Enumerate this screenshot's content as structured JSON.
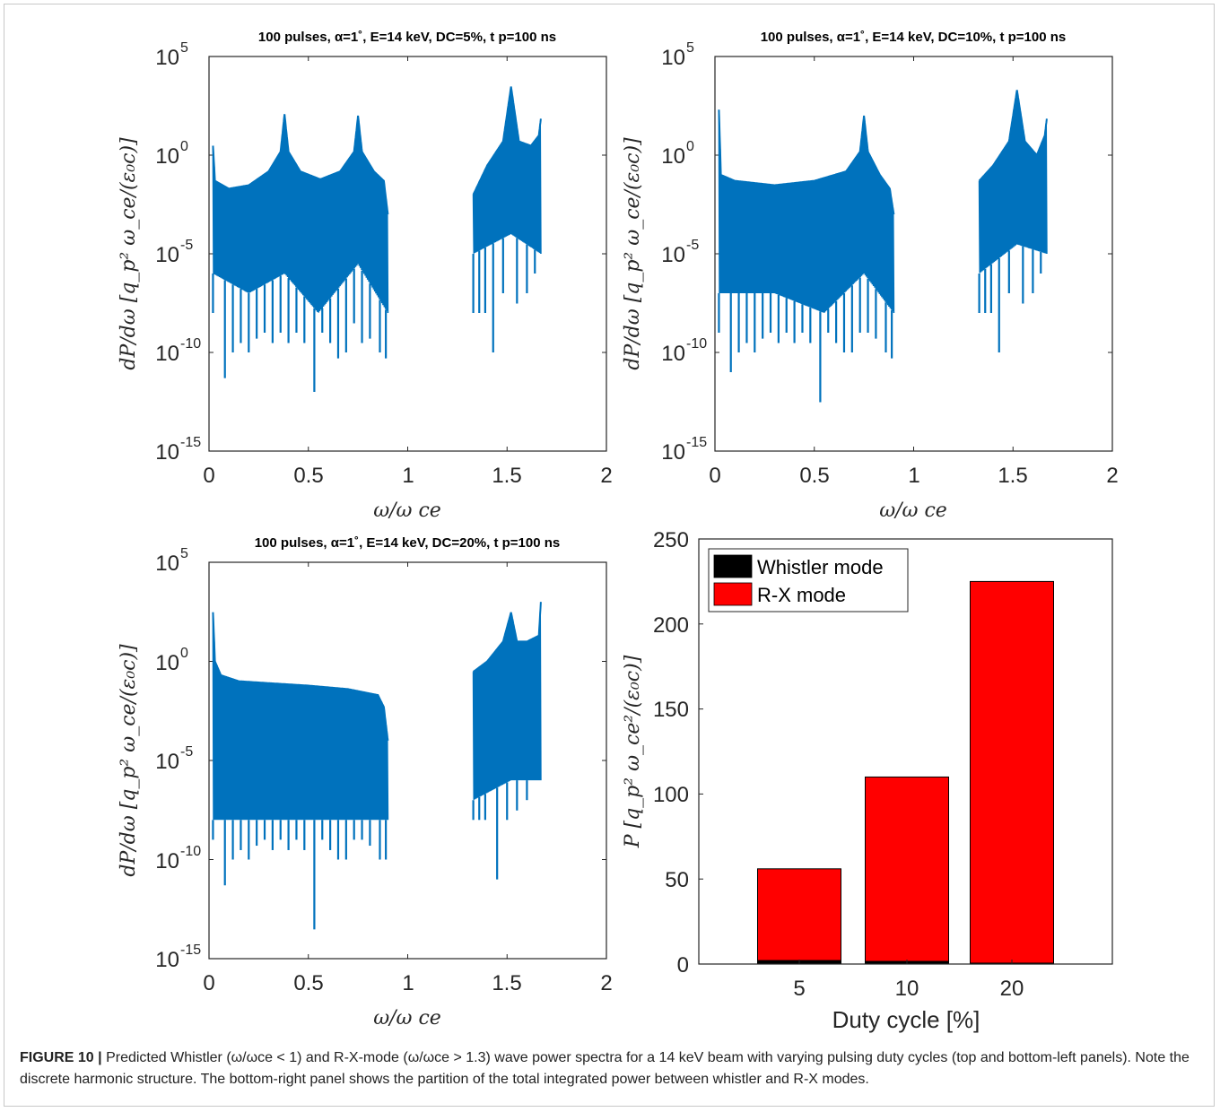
{
  "figure": {
    "caption_label": "FIGURE 10 |",
    "caption_text": "Predicted Whistler (ω/ωce < 1) and R-X-mode (ω/ωce > 1.3) wave power spectra for a 14 keV beam with varying pulsing duty cycles (top and bottom-left panels). Note the discrete harmonic structure. The bottom-right panel shows the partition of the total integrated power between whistler and R-X modes."
  },
  "colors": {
    "spectrum": "#0072BD",
    "whistler": "#000000",
    "rx": "#FF0000",
    "axis": "#262626"
  },
  "chart_data": [
    {
      "type": "line",
      "title": "100 pulses, α=1˚, E=14 keV, DC=5%, t p=100 ns",
      "xlabel": "ω/ω ce",
      "ylabel": "dP/dω [q_p² ω_ce/(ε₀c)]",
      "xlim": [
        0,
        2
      ],
      "ylim": [
        1e-15,
        100000
      ],
      "yscale": "log",
      "xticks": [
        "0",
        "0.5",
        "1",
        "1.5",
        "2"
      ],
      "yticks": [
        "10",
        "10",
        "10",
        "10",
        "10"
      ],
      "ytick_exponents": [
        "-15",
        "-10",
        "-5",
        "0",
        "5"
      ],
      "series": [
        {
          "upper_envelope": [
            [
              0.02,
              3
            ],
            [
              0.03,
              0.05
            ],
            [
              0.1,
              0.02
            ],
            [
              0.2,
              0.03
            ],
            [
              0.3,
              0.15
            ],
            [
              0.36,
              1.5
            ],
            [
              0.38,
              120
            ],
            [
              0.4,
              1.5
            ],
            [
              0.46,
              0.15
            ],
            [
              0.56,
              0.06
            ],
            [
              0.66,
              0.15
            ],
            [
              0.73,
              1.5
            ],
            [
              0.75,
              100
            ],
            [
              0.77,
              1.5
            ],
            [
              0.83,
              0.15
            ],
            [
              0.88,
              0.05
            ],
            [
              0.9,
              0.001
            ],
            [
              1.33,
              0.01
            ],
            [
              1.4,
              0.3
            ],
            [
              1.48,
              5
            ],
            [
              1.52,
              3000
            ],
            [
              1.56,
              5
            ],
            [
              1.62,
              3
            ],
            [
              1.66,
              10
            ],
            [
              1.67,
              70
            ]
          ],
          "lower_envelope": [
            [
              0.02,
              1e-06
            ],
            [
              0.2,
              1e-07
            ],
            [
              0.38,
              1e-06
            ],
            [
              0.55,
              1e-08
            ],
            [
              0.75,
              3e-06
            ],
            [
              0.9,
              1e-08
            ],
            [
              1.33,
              1e-05
            ],
            [
              1.52,
              0.0001
            ],
            [
              1.67,
              1e-05
            ]
          ],
          "dips": [
            [
              0.02,
              1e-08
            ],
            [
              0.08,
              5e-12
            ],
            [
              0.12,
              1e-10
            ],
            [
              0.16,
              3e-10
            ],
            [
              0.2,
              1e-10
            ],
            [
              0.24,
              5e-10
            ],
            [
              0.28,
              1e-09
            ],
            [
              0.32,
              3e-10
            ],
            [
              0.36,
              1e-09
            ],
            [
              0.4,
              3e-10
            ],
            [
              0.44,
              1e-09
            ],
            [
              0.48,
              3e-10
            ],
            [
              0.53,
              1e-12
            ],
            [
              0.57,
              1e-09
            ],
            [
              0.61,
              3e-10
            ],
            [
              0.65,
              5e-11
            ],
            [
              0.69,
              1e-10
            ],
            [
              0.73,
              3e-09
            ],
            [
              0.77,
              3e-10
            ],
            [
              0.81,
              5e-10
            ],
            [
              0.86,
              1e-10
            ],
            [
              0.89,
              5e-11
            ],
            [
              1.33,
              1e-08
            ],
            [
              1.36,
              1e-08
            ],
            [
              1.39,
              1e-08
            ],
            [
              1.43,
              1e-10
            ],
            [
              1.48,
              1e-07
            ],
            [
              1.55,
              3e-08
            ],
            [
              1.6,
              1e-07
            ],
            [
              1.64,
              1e-06
            ]
          ]
        }
      ]
    },
    {
      "type": "line",
      "title": "100 pulses, α=1˚, E=14 keV, DC=10%, t p=100 ns",
      "xlabel": "ω/ω ce",
      "ylabel": "dP/dω [q_p² ω_ce/(ε₀c)]",
      "xlim": [
        0,
        2
      ],
      "ylim": [
        1e-15,
        100000
      ],
      "yscale": "log",
      "xticks": [
        "0",
        "0.5",
        "1",
        "1.5",
        "2"
      ],
      "yticks": [
        "10",
        "10",
        "10",
        "10",
        "10"
      ],
      "ytick_exponents": [
        "-15",
        "-10",
        "-5",
        "0",
        "5"
      ],
      "series": [
        {
          "upper_envelope": [
            [
              0.02,
              200
            ],
            [
              0.03,
              0.1
            ],
            [
              0.1,
              0.05
            ],
            [
              0.3,
              0.03
            ],
            [
              0.5,
              0.05
            ],
            [
              0.66,
              0.15
            ],
            [
              0.73,
              1.5
            ],
            [
              0.75,
              100
            ],
            [
              0.77,
              1.5
            ],
            [
              0.83,
              0.1
            ],
            [
              0.88,
              0.02
            ],
            [
              0.9,
              0.001
            ],
            [
              1.33,
              0.05
            ],
            [
              1.4,
              0.3
            ],
            [
              1.48,
              5
            ],
            [
              1.52,
              2000
            ],
            [
              1.56,
              5
            ],
            [
              1.62,
              1
            ],
            [
              1.66,
              10
            ],
            [
              1.67,
              70
            ]
          ],
          "lower_envelope": [
            [
              0.02,
              1e-07
            ],
            [
              0.3,
              1e-07
            ],
            [
              0.55,
              1e-08
            ],
            [
              0.75,
              1e-06
            ],
            [
              0.9,
              1e-08
            ],
            [
              1.33,
              1e-06
            ],
            [
              1.52,
              3e-05
            ],
            [
              1.67,
              1e-05
            ]
          ],
          "dips": [
            [
              0.02,
              1e-09
            ],
            [
              0.08,
              1e-11
            ],
            [
              0.12,
              1e-10
            ],
            [
              0.16,
              3e-10
            ],
            [
              0.2,
              1e-10
            ],
            [
              0.24,
              5e-10
            ],
            [
              0.28,
              1e-09
            ],
            [
              0.32,
              3e-10
            ],
            [
              0.36,
              1e-09
            ],
            [
              0.4,
              3e-10
            ],
            [
              0.44,
              1e-09
            ],
            [
              0.48,
              3e-10
            ],
            [
              0.53,
              3e-13
            ],
            [
              0.57,
              1e-09
            ],
            [
              0.61,
              3e-10
            ],
            [
              0.65,
              1e-10
            ],
            [
              0.69,
              1e-10
            ],
            [
              0.73,
              1e-09
            ],
            [
              0.77,
              1e-09
            ],
            [
              0.81,
              5e-10
            ],
            [
              0.86,
              1e-10
            ],
            [
              0.89,
              5e-11
            ],
            [
              1.33,
              1e-08
            ],
            [
              1.36,
              1e-08
            ],
            [
              1.39,
              1e-08
            ],
            [
              1.43,
              1e-10
            ],
            [
              1.48,
              1e-07
            ],
            [
              1.55,
              3e-08
            ],
            [
              1.6,
              1e-07
            ],
            [
              1.64,
              1e-06
            ]
          ]
        }
      ]
    },
    {
      "type": "line",
      "title": "100 pulses, α=1˚, E=14 keV, DC=20%, t p=100 ns",
      "xlabel": "ω/ω ce",
      "ylabel": "dP/dω [q_p² ω_ce/(ε₀c)]",
      "xlim": [
        0,
        2
      ],
      "ylim": [
        1e-15,
        100000
      ],
      "yscale": "log",
      "xticks": [
        "0",
        "0.5",
        "1",
        "1.5",
        "2"
      ],
      "yticks": [
        "10",
        "10",
        "10",
        "10",
        "10"
      ],
      "ytick_exponents": [
        "-15",
        "-10",
        "-5",
        "0",
        "5"
      ],
      "series": [
        {
          "upper_envelope": [
            [
              0.02,
              300
            ],
            [
              0.03,
              1
            ],
            [
              0.06,
              0.2
            ],
            [
              0.15,
              0.1
            ],
            [
              0.3,
              0.08
            ],
            [
              0.5,
              0.06
            ],
            [
              0.7,
              0.04
            ],
            [
              0.85,
              0.02
            ],
            [
              0.88,
              0.005
            ],
            [
              0.9,
              0.0001
            ],
            [
              1.33,
              0.3
            ],
            [
              1.4,
              1
            ],
            [
              1.48,
              10
            ],
            [
              1.52,
              300
            ],
            [
              1.55,
              10
            ],
            [
              1.6,
              10
            ],
            [
              1.66,
              20
            ],
            [
              1.67,
              1000
            ]
          ],
          "lower_envelope": [
            [
              0.02,
              1e-08
            ],
            [
              0.3,
              1e-08
            ],
            [
              0.55,
              1e-08
            ],
            [
              0.9,
              1e-08
            ],
            [
              1.33,
              1e-07
            ],
            [
              1.52,
              1e-06
            ],
            [
              1.67,
              1e-06
            ]
          ],
          "dips": [
            [
              0.02,
              1e-09
            ],
            [
              0.08,
              5e-12
            ],
            [
              0.12,
              1e-10
            ],
            [
              0.16,
              3e-10
            ],
            [
              0.2,
              1e-10
            ],
            [
              0.24,
              5e-10
            ],
            [
              0.28,
              1e-09
            ],
            [
              0.32,
              3e-10
            ],
            [
              0.36,
              1e-09
            ],
            [
              0.4,
              3e-10
            ],
            [
              0.44,
              1e-09
            ],
            [
              0.48,
              3e-10
            ],
            [
              0.53,
              3e-14
            ],
            [
              0.57,
              1e-09
            ],
            [
              0.61,
              3e-10
            ],
            [
              0.65,
              1e-10
            ],
            [
              0.69,
              1e-10
            ],
            [
              0.73,
              1e-09
            ],
            [
              0.77,
              1e-09
            ],
            [
              0.81,
              5e-10
            ],
            [
              0.86,
              1e-10
            ],
            [
              0.89,
              1e-10
            ],
            [
              1.33,
              1e-08
            ],
            [
              1.36,
              1e-08
            ],
            [
              1.39,
              1e-08
            ],
            [
              1.45,
              1e-11
            ],
            [
              1.5,
              1e-08
            ],
            [
              1.55,
              3e-08
            ],
            [
              1.6,
              1e-07
            ],
            [
              1.64,
              1e-06
            ]
          ]
        }
      ]
    },
    {
      "type": "bar",
      "stacked": true,
      "title": "",
      "xlabel": "Duty cycle [%]",
      "ylabel": "P [q_p² ω_ce²/(ε₀c)]",
      "categories": [
        "5",
        "10",
        "20"
      ],
      "ylim": [
        0,
        250
      ],
      "yticks": [
        "0",
        "50",
        "100",
        "150",
        "200",
        "250"
      ],
      "legend_position": "top-left",
      "series": [
        {
          "name": "Whistler mode",
          "values": [
            2,
            1.5,
            0.5
          ]
        },
        {
          "name": "R-X mode",
          "values": [
            54,
            108.5,
            224.5
          ]
        }
      ]
    }
  ]
}
